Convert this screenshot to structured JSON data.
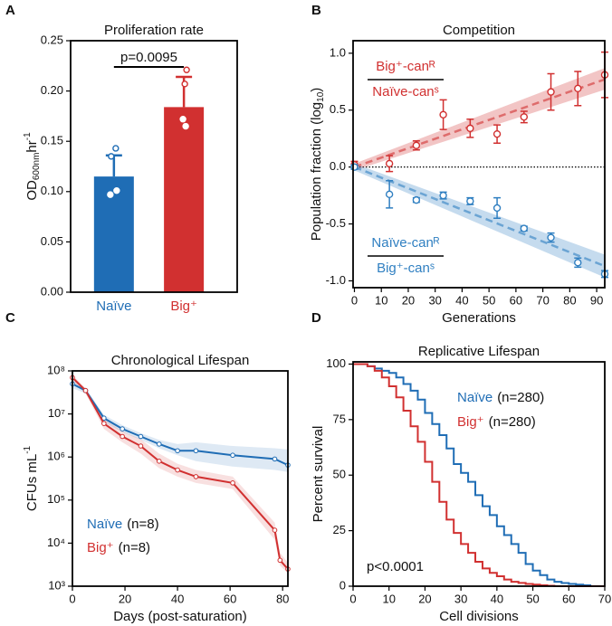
{
  "chart_data": [
    {
      "type": "bar",
      "panel": "A",
      "title": "Proliferation rate",
      "ylabel": {
        "text": "OD",
        "sub": "600nm",
        "unit": "hr",
        "sup": "-1"
      },
      "categories": [
        "Naïve",
        "Big⁺"
      ],
      "colors": [
        "#1f6db5",
        "#d13030"
      ],
      "values": [
        0.115,
        0.184
      ],
      "errors": [
        0.021,
        0.03
      ],
      "points": [
        [
          0.143,
          0.135,
          0.101,
          0.097
        ],
        [
          0.221,
          0.207,
          0.172,
          0.165
        ]
      ],
      "annotation": "p=0.0095",
      "ylim": [
        0,
        0.25
      ],
      "yticks": [
        {
          "value": 0,
          "label": "0.00"
        },
        0.05,
        {
          "value": 0.1,
          "label": "0.10"
        },
        0.15,
        {
          "value": 0.2,
          "label": "0.20"
        },
        0.25
      ]
    },
    {
      "type": "scatter",
      "panel": "B",
      "title": "Competition",
      "xlabel": "Generations",
      "ylabel": {
        "text": "Population fraction (log",
        "sub": "10",
        "end": ")"
      },
      "xlim": [
        -0.5,
        93
      ],
      "ylim": [
        -1.06,
        1.11
      ],
      "xticks": [
        0,
        10,
        20,
        30,
        40,
        50,
        60,
        70,
        80,
        90
      ],
      "yticks": [
        {
          "value": -1,
          "label": "-1.0"
        },
        -0.5,
        {
          "value": 0,
          "label": "0.0"
        },
        0.5,
        {
          "value": 1,
          "label": "1.0"
        }
      ],
      "hline": 0,
      "series": [
        {
          "label_top": "Big⁺-canᴿ",
          "label_bottom": "Naïve-canˢ",
          "color": "#d13030",
          "x": [
            0,
            13,
            23,
            33,
            43,
            53,
            63,
            73,
            83,
            93
          ],
          "values": [
            0.02,
            0.03,
            0.19,
            0.46,
            0.34,
            0.29,
            0.44,
            0.66,
            0.69,
            0.81
          ],
          "errors": [
            0.03,
            0.07,
            0.04,
            0.13,
            0.08,
            0.08,
            0.05,
            0.16,
            0.15,
            0.2
          ],
          "fit": {
            "x": [
              0,
              93
            ],
            "values": [
              0,
              0.77
            ]
          },
          "band": {
            "x": [
              0,
              93
            ],
            "lower": [
              -0.03,
              0.68
            ],
            "upper": [
              0.03,
              0.87
            ]
          }
        },
        {
          "label_top": "Naïve-canᴿ",
          "label_bottom": "Big⁺-canˢ",
          "color": "#2f7fc1",
          "x": [
            0,
            13,
            23,
            33,
            43,
            53,
            63,
            73,
            83,
            93
          ],
          "values": [
            0.0,
            -0.24,
            -0.29,
            -0.25,
            -0.3,
            -0.36,
            -0.54,
            -0.62,
            -0.84,
            -0.94
          ],
          "errors": [
            0.02,
            0.12,
            0.02,
            0.03,
            0.03,
            0.09,
            0.02,
            0.04,
            0.04,
            0.03
          ],
          "fit": {
            "x": [
              0,
              93
            ],
            "values": [
              0,
              -0.87
            ]
          },
          "band": {
            "x": [
              0,
              93
            ],
            "lower": [
              -0.03,
              -0.97
            ],
            "upper": [
              0.03,
              -0.77
            ]
          }
        }
      ]
    },
    {
      "type": "line",
      "panel": "C",
      "title": "Chronological Lifespan",
      "xlabel": "Days (post-saturation)",
      "ylabel": {
        "text": "CFUs mL",
        "sup": "-1"
      },
      "log_y": true,
      "xlim": [
        0,
        82
      ],
      "ylim": [
        1000,
        100000000.0
      ],
      "xticks": [
        0,
        20,
        40,
        60,
        80
      ],
      "yticks": [
        {
          "value": 1000,
          "label": "10³"
        },
        {
          "value": 10000,
          "label": "10⁴"
        },
        {
          "value": 100000,
          "label": "10⁵"
        },
        {
          "value": 1000000,
          "label": "10⁶"
        },
        {
          "value": 10000000,
          "label": "10⁷"
        },
        {
          "value": 100000000,
          "label": "10⁸"
        }
      ],
      "series": [
        {
          "name": "Naïve",
          "n_label": "(n=8)",
          "color": "#1f6db5",
          "x": [
            0,
            5,
            12,
            19,
            26,
            33,
            40,
            47,
            61,
            77,
            82
          ],
          "values": [
            50000000.0,
            35000000.0,
            8000000.0,
            4500000.0,
            3000000.0,
            2000000.0,
            1400000.0,
            1400000.0,
            1100000.0,
            900000.0,
            650000.0
          ],
          "lower": [
            40000000.0,
            30000000.0,
            6500000.0,
            3800000.0,
            2500000.0,
            1600000.0,
            1100000.0,
            800000.0,
            600000.0,
            500000.0,
            450000.0
          ],
          "upper": [
            60000000.0,
            40000000.0,
            9500000.0,
            5500000.0,
            3600000.0,
            2500000.0,
            2000000.0,
            2200000.0,
            1800000.0,
            1600000.0,
            1500000.0
          ]
        },
        {
          "name": "Big⁺",
          "n_label": "(n=8)",
          "color": "#d13030",
          "x": [
            0,
            5,
            12,
            19,
            26,
            33,
            40,
            47,
            61,
            77,
            79,
            82
          ],
          "values": [
            70000000.0,
            35000000.0,
            6000000.0,
            3000000.0,
            1800000.0,
            800000.0,
            500000.0,
            350000.0,
            250000.0,
            20000.0,
            4000.0,
            2500.0
          ],
          "lower": [
            60000000.0,
            30000000.0,
            4500000.0,
            2200000.0,
            1200000.0,
            550000.0,
            350000.0,
            250000.0,
            180000.0,
            12000.0,
            3000.0,
            2000.0
          ],
          "upper": [
            80000000.0,
            40000000.0,
            7500000.0,
            4000000.0,
            2600000.0,
            1200000.0,
            700000.0,
            500000.0,
            350000.0,
            30000.0,
            6000.0,
            3500.0
          ]
        }
      ]
    },
    {
      "type": "step",
      "panel": "D",
      "title": "Replicative Lifespan",
      "xlabel": "Cell divisions",
      "ylabel": "Percent survival",
      "annotation": "p<0.0001",
      "xlim": [
        0,
        70
      ],
      "ylim": [
        0,
        101
      ],
      "xticks": [
        0,
        10,
        20,
        30,
        40,
        50,
        60,
        70
      ],
      "yticks": [
        0,
        25,
        50,
        75,
        100
      ],
      "x": [
        0,
        2,
        4,
        6,
        8,
        10,
        12,
        14,
        16,
        18,
        20,
        22,
        24,
        26,
        28,
        30,
        32,
        34,
        36,
        38,
        40,
        42,
        44,
        46,
        48,
        50,
        52,
        54,
        56,
        58,
        60,
        62,
        64,
        66,
        68,
        70
      ],
      "series": [
        {
          "name": "Naïve",
          "n_label": "(n=280)",
          "color": "#1f6db5",
          "values": [
            100,
            100,
            99,
            98,
            97,
            96,
            94,
            91,
            88,
            84,
            78,
            73,
            68,
            62,
            55,
            51,
            47,
            41,
            36,
            32,
            27,
            23,
            19,
            15,
            10,
            7,
            5,
            3,
            2,
            1.4,
            1,
            0.7,
            0.4,
            0,
            0,
            0
          ]
        },
        {
          "name": "Big⁺",
          "n_label": "(n=280)",
          "color": "#d13030",
          "values": [
            100,
            100,
            99,
            97,
            94,
            90,
            85,
            79,
            72,
            65,
            56,
            47,
            38,
            30,
            24,
            19,
            15,
            11,
            8,
            6,
            4.5,
            3,
            2,
            1.5,
            1,
            0.7,
            0.4,
            0.2,
            0,
            0,
            0,
            0,
            0,
            0,
            0,
            0
          ]
        }
      ]
    }
  ]
}
